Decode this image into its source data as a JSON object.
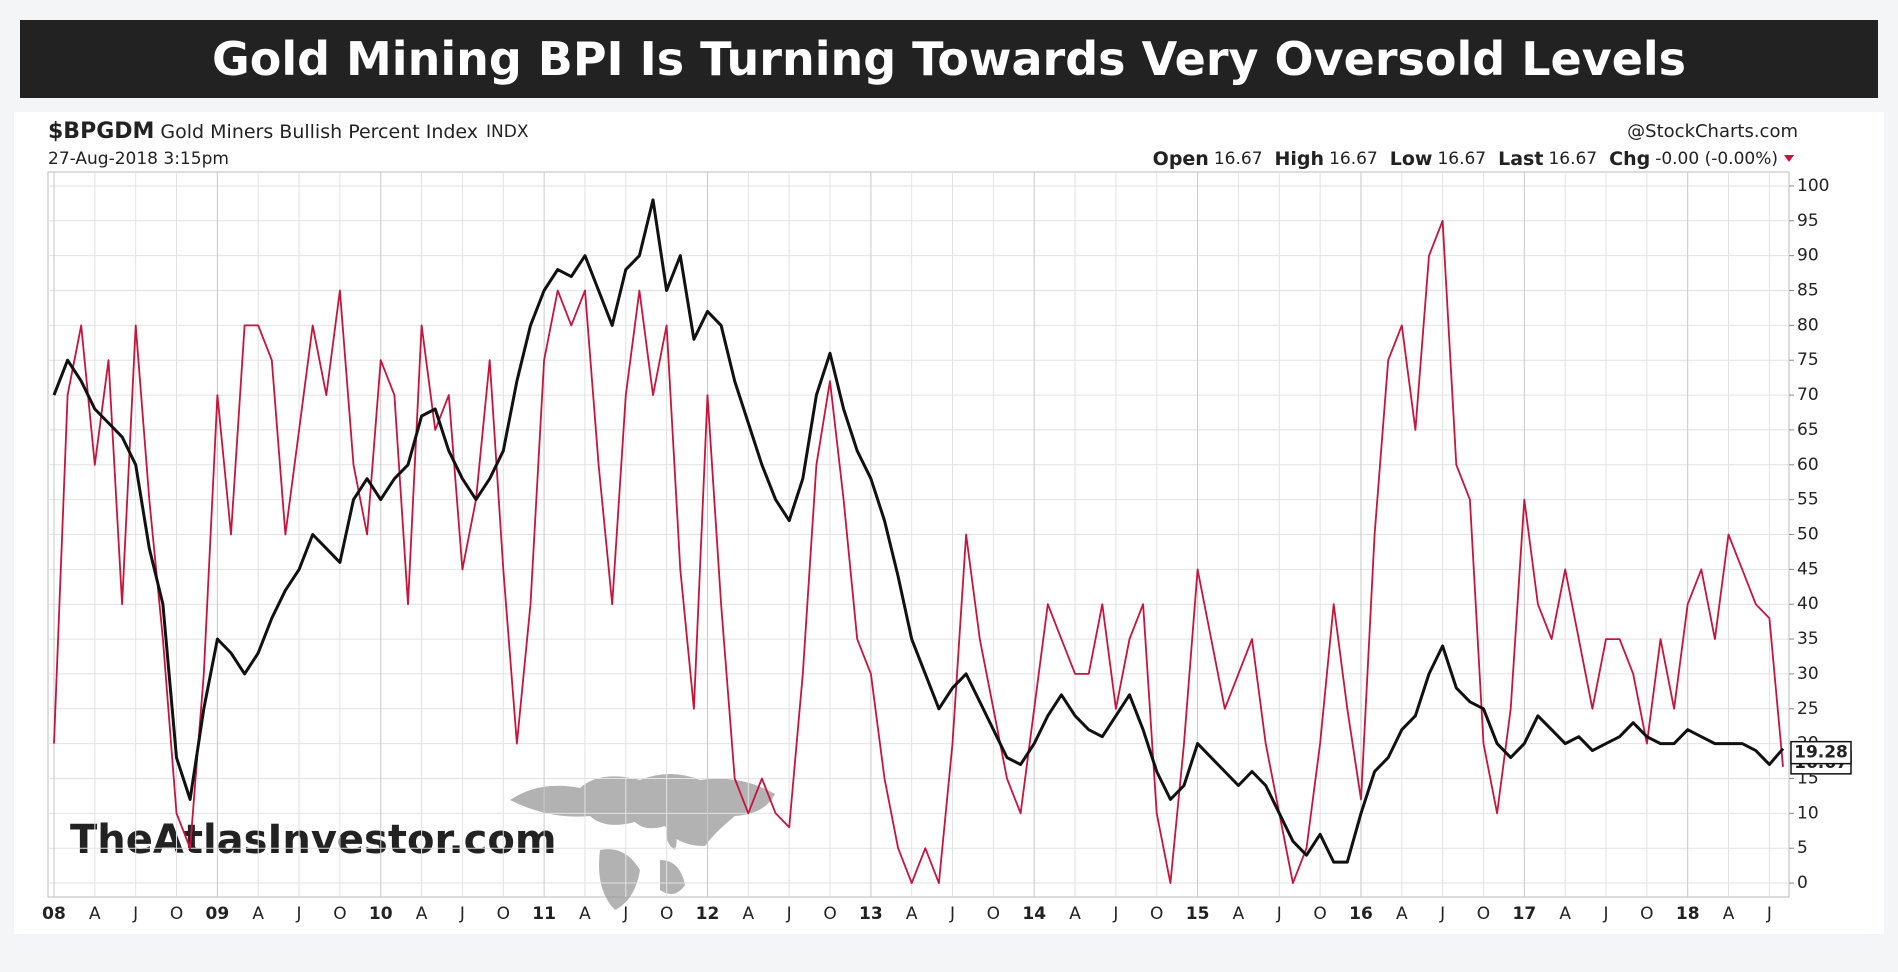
{
  "header": {
    "title": "Gold Mining BPI Is Turning Towards Very Oversold Levels"
  },
  "watermark": "TheAtlasInvestor.com",
  "chart_data": {
    "type": "line",
    "symbol": "$BPGDM",
    "name": "Gold Miners Bullish Percent Index",
    "exchange": "INDX",
    "date": "27-Aug-2018 3:15pm",
    "source": "@StockCharts.com",
    "quote": [
      [
        "Open",
        "16.67"
      ],
      [
        "High",
        "16.67"
      ],
      [
        "Low",
        "16.67"
      ],
      [
        "Last",
        "16.67"
      ],
      [
        "Chg",
        "-0.00 (-0.00%)"
      ]
    ],
    "categories": [
      "08",
      null,
      null,
      "A",
      null,
      null,
      "J",
      null,
      null,
      "O",
      null,
      null,
      "09",
      null,
      null,
      "A",
      null,
      null,
      "J",
      null,
      null,
      "O",
      null,
      null,
      "10",
      null,
      null,
      "A",
      null,
      null,
      "J",
      null,
      null,
      "O",
      null,
      null,
      "11",
      null,
      null,
      "A",
      null,
      null,
      "J",
      null,
      null,
      "O",
      null,
      null,
      "12",
      null,
      null,
      "A",
      null,
      null,
      "J",
      null,
      null,
      "O",
      null,
      null,
      "13",
      null,
      null,
      "A",
      null,
      null,
      "J",
      null,
      null,
      "O",
      null,
      null,
      "14",
      null,
      null,
      "A",
      null,
      null,
      "J",
      null,
      null,
      "O",
      null,
      null,
      "15",
      null,
      null,
      "A",
      null,
      null,
      "J",
      null,
      null,
      "O",
      null,
      null,
      "16",
      null,
      null,
      "A",
      null,
      null,
      "J",
      null,
      null,
      "O",
      null,
      null,
      "17",
      null,
      null,
      "A",
      null,
      null,
      "J",
      null,
      null,
      "O",
      null,
      null,
      "18",
      null,
      null,
      "A",
      null,
      null,
      "J",
      null
    ],
    "series": [
      {
        "color": "#c8143c",
        "values": [
          20,
          70,
          80,
          60,
          75,
          40,
          80,
          55,
          35,
          10,
          5,
          30,
          70,
          50,
          80,
          80,
          75,
          50,
          65,
          80,
          70,
          85,
          60,
          50,
          75,
          70,
          40,
          80,
          65,
          70,
          45,
          55,
          75,
          45,
          20,
          40,
          75,
          85,
          80,
          85,
          60,
          40,
          70,
          85,
          70,
          80,
          45,
          25,
          70,
          40,
          15,
          10,
          15,
          10,
          8,
          30,
          60,
          72,
          55,
          35,
          30,
          15,
          5,
          0,
          5,
          0,
          20,
          50,
          35,
          25,
          15,
          10,
          25,
          40,
          35,
          30,
          30,
          40,
          25,
          35,
          40,
          10,
          0,
          20,
          45,
          35,
          25,
          30,
          35,
          20,
          10,
          0,
          5,
          20,
          40,
          25,
          12,
          50,
          75,
          80,
          65,
          90,
          95,
          60,
          55,
          20,
          10,
          25,
          55,
          40,
          35,
          45,
          35,
          25,
          35,
          35,
          30,
          20,
          35,
          25,
          40,
          45,
          35,
          50,
          45,
          40,
          38,
          16.67
        ]
      },
      {
        "color": "#111111",
        "values": [
          70,
          75,
          72,
          68,
          66,
          64,
          60,
          48,
          40,
          18,
          12,
          25,
          35,
          33,
          30,
          33,
          38,
          42,
          45,
          50,
          48,
          46,
          55,
          58,
          55,
          58,
          60,
          67,
          68,
          62,
          58,
          55,
          58,
          62,
          72,
          80,
          85,
          88,
          87,
          90,
          85,
          80,
          88,
          90,
          98,
          85,
          90,
          78,
          82,
          80,
          72,
          66,
          60,
          55,
          52,
          58,
          70,
          76,
          68,
          62,
          58,
          52,
          44,
          35,
          30,
          25,
          28,
          30,
          26,
          22,
          18,
          17,
          20,
          24,
          27,
          24,
          22,
          21,
          24,
          27,
          22,
          16,
          12,
          14,
          20,
          18,
          16,
          14,
          16,
          14,
          10,
          6,
          4,
          7,
          3,
          3,
          10,
          16,
          18,
          22,
          24,
          30,
          34,
          28,
          26,
          25,
          20,
          18,
          20,
          24,
          22,
          20,
          21,
          19,
          20,
          21,
          23,
          21,
          20,
          20,
          22,
          21,
          20,
          20,
          20,
          19,
          17,
          19.28
        ]
      }
    ],
    "ylim": [
      -2,
      102
    ],
    "yticks": [
      0,
      5,
      10,
      15,
      20,
      25,
      30,
      35,
      40,
      45,
      50,
      55,
      60,
      65,
      70,
      75,
      80,
      85,
      90,
      95,
      100
    ],
    "grid": true
  }
}
